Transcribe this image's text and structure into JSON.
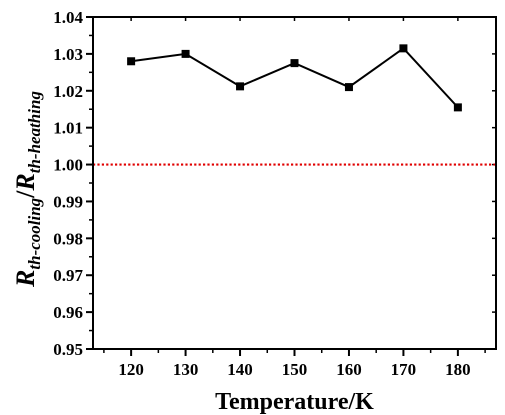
{
  "chart_data": {
    "type": "line",
    "xlabel": "Temperature/K",
    "ylabel": {
      "main": "R",
      "sub1": "th-cooling",
      "sep": "/",
      "main2": "R",
      "sub2": "th-heathing"
    },
    "x": [
      120,
      130,
      140,
      150,
      160,
      170,
      180
    ],
    "series": [
      {
        "values": [
          1.028,
          1.03,
          1.0212,
          1.0275,
          1.021,
          1.0315,
          1.0155
        ],
        "color": "#000000",
        "marker": "square"
      }
    ],
    "reference_line": {
      "y": 1.0,
      "color": "#e00000",
      "style": "dotted"
    },
    "xlim": [
      113,
      187
    ],
    "ylim": [
      0.95,
      1.04
    ],
    "xticks": [
      120,
      130,
      140,
      150,
      160,
      170,
      180
    ],
    "yticks": [
      "0.95",
      "0.96",
      "0.97",
      "0.98",
      "0.99",
      "1.00",
      "1.01",
      "1.02",
      "1.03",
      "1.04"
    ],
    "grid": false
  }
}
